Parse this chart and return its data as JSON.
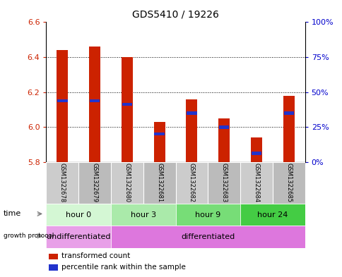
{
  "title": "GDS5410 / 19226",
  "samples": [
    "GSM1322678",
    "GSM1322679",
    "GSM1322680",
    "GSM1322681",
    "GSM1322682",
    "GSM1322683",
    "GSM1322684",
    "GSM1322685"
  ],
  "bar_bottom": 5.8,
  "bar_tops": [
    6.44,
    6.46,
    6.4,
    6.03,
    6.16,
    6.05,
    5.94,
    6.18
  ],
  "percentile_values": [
    6.15,
    6.15,
    6.13,
    5.96,
    6.08,
    6.0,
    5.85,
    6.08
  ],
  "ylim": [
    5.8,
    6.6
  ],
  "y_left_ticks": [
    5.8,
    6.0,
    6.2,
    6.4,
    6.6
  ],
  "y_right_ticks": [
    0,
    25,
    50,
    75,
    100
  ],
  "y_right_labels": [
    "0%",
    "25%",
    "50%",
    "75%",
    "100%"
  ],
  "bar_color": "#cc2200",
  "percentile_color": "#2233cc",
  "grid_color": "#000000",
  "time_groups": [
    {
      "label": "hour 0",
      "start": 0,
      "end": 2,
      "color": "#d4f7d4"
    },
    {
      "label": "hour 3",
      "start": 2,
      "end": 4,
      "color": "#aaeaaa"
    },
    {
      "label": "hour 9",
      "start": 4,
      "end": 6,
      "color": "#77dd77"
    },
    {
      "label": "hour 24",
      "start": 6,
      "end": 8,
      "color": "#44cc44"
    }
  ],
  "protocol_groups": [
    {
      "label": "undifferentiated",
      "start": 0,
      "end": 2,
      "color": "#e8a0e8"
    },
    {
      "label": "differentiated",
      "start": 2,
      "end": 8,
      "color": "#dd77dd"
    }
  ],
  "bg_color": "#ffffff",
  "tick_label_color_left": "#cc2200",
  "tick_label_color_right": "#0000cc",
  "sample_area_color": "#c8c8c8",
  "legend_items": [
    {
      "label": "transformed count",
      "color": "#cc2200"
    },
    {
      "label": "percentile rank within the sample",
      "color": "#2233cc"
    }
  ]
}
